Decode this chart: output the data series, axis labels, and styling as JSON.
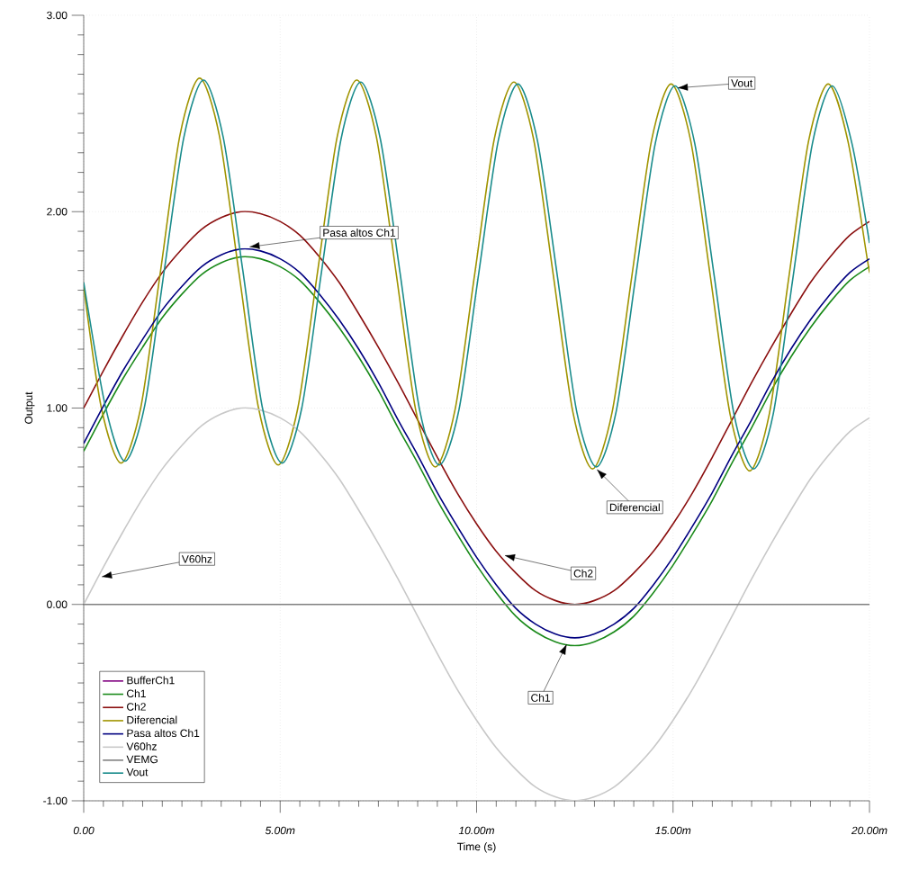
{
  "chart_data": {
    "type": "line",
    "xlabel": "Time (s)",
    "ylabel": "Output",
    "xlim": [
      0,
      20
    ],
    "ylim": [
      -1,
      3
    ],
    "xticks": [
      {
        "value": 0,
        "label": "0.00"
      },
      {
        "value": 5,
        "label": "5.00m"
      },
      {
        "value": 10,
        "label": "10.00m"
      },
      {
        "value": 15,
        "label": "15.00m"
      },
      {
        "value": 20,
        "label": "20.00m"
      }
    ],
    "yticks": [
      {
        "value": -1,
        "label": "-1.00"
      },
      {
        "value": 0,
        "label": "0.00"
      },
      {
        "value": 1,
        "label": "1.00"
      },
      {
        "value": 2,
        "label": "2.00"
      },
      {
        "value": 3,
        "label": "3.00"
      }
    ],
    "grid": true,
    "legend": "bottom left",
    "x": [
      0,
      0.5,
      1,
      1.5,
      2,
      2.5,
      3,
      3.5,
      4,
      4.5,
      5,
      5.5,
      6,
      6.5,
      7,
      7.5,
      8,
      8.5,
      9,
      9.5,
      10,
      10.5,
      11,
      11.5,
      12,
      12.5,
      13,
      13.5,
      14,
      14.5,
      15,
      15.5,
      16,
      16.5,
      17,
      17.5,
      18,
      18.5,
      19,
      19.5,
      20
    ],
    "series": [
      {
        "name": "BufferCh1",
        "color": "#800080",
        "values": [
          null,
          null,
          null,
          null,
          null,
          null,
          null,
          null,
          null,
          null,
          null,
          null,
          null,
          null,
          null,
          null,
          null,
          null,
          null,
          null,
          null,
          null,
          null,
          null,
          null,
          null,
          null,
          null,
          null,
          null,
          null,
          null,
          null,
          null,
          null,
          null,
          null,
          null,
          null,
          null,
          null
        ]
      },
      {
        "name": "Ch1",
        "color": "#1a8a1a",
        "values": [
          0.78,
          0.97,
          1.15,
          1.31,
          1.46,
          1.58,
          1.68,
          1.74,
          1.77,
          1.76,
          1.72,
          1.65,
          1.54,
          1.41,
          1.26,
          1.09,
          0.9,
          0.72,
          0.53,
          0.36,
          0.2,
          0.06,
          -0.06,
          -0.14,
          -0.19,
          -0.21,
          -0.19,
          -0.14,
          -0.06,
          0.06,
          0.2,
          0.36,
          0.53,
          0.72,
          0.9,
          1.09,
          1.26,
          1.41,
          1.54,
          1.65,
          1.72
        ]
      },
      {
        "name": "Ch2",
        "color": "#8b1010",
        "values": [
          1.0,
          1.19,
          1.37,
          1.54,
          1.69,
          1.81,
          1.91,
          1.97,
          2.0,
          1.99,
          1.95,
          1.88,
          1.77,
          1.64,
          1.48,
          1.31,
          1.13,
          0.94,
          0.75,
          0.57,
          0.41,
          0.27,
          0.16,
          0.07,
          0.02,
          0.0,
          0.02,
          0.07,
          0.16,
          0.27,
          0.41,
          0.57,
          0.75,
          0.94,
          1.13,
          1.31,
          1.48,
          1.64,
          1.77,
          1.88,
          1.95
        ]
      },
      {
        "name": "Diferencial",
        "color": "#a09400",
        "x": [
          0,
          0.45,
          0.95,
          1.45,
          1.95,
          2.45,
          2.95,
          3.45,
          3.95,
          4.45,
          4.95,
          5.45,
          5.95,
          6.45,
          6.95,
          7.45,
          7.95,
          8.45,
          8.95,
          9.45,
          9.95,
          10.45,
          10.95,
          11.45,
          11.95,
          12.45,
          12.95,
          13.45,
          13.95,
          14.45,
          14.95,
          15.45,
          15.95,
          16.45,
          16.95,
          17.45,
          17.95,
          18.45,
          18.95,
          19.45,
          19.95,
          20
        ],
        "values": [
          1.62,
          1.0,
          0.72,
          1.0,
          1.69,
          2.39,
          2.68,
          2.39,
          1.69,
          1.0,
          0.71,
          1.0,
          1.69,
          2.38,
          2.67,
          2.38,
          1.69,
          0.99,
          0.7,
          0.99,
          1.68,
          2.37,
          2.66,
          2.37,
          1.68,
          0.98,
          0.69,
          0.98,
          1.67,
          2.36,
          2.65,
          2.36,
          1.67,
          0.97,
          0.68,
          0.97,
          1.67,
          2.36,
          2.65,
          2.36,
          1.75,
          1.7
        ]
      },
      {
        "name": "Pasa altos Ch1",
        "color": "#000080",
        "values": [
          0.82,
          1.01,
          1.19,
          1.35,
          1.5,
          1.62,
          1.72,
          1.78,
          1.81,
          1.8,
          1.76,
          1.69,
          1.58,
          1.45,
          1.3,
          1.13,
          0.94,
          0.76,
          0.57,
          0.4,
          0.24,
          0.1,
          -0.02,
          -0.1,
          -0.15,
          -0.17,
          -0.15,
          -0.1,
          -0.02,
          0.1,
          0.24,
          0.4,
          0.57,
          0.76,
          0.94,
          1.13,
          1.3,
          1.45,
          1.58,
          1.69,
          1.76
        ]
      },
      {
        "name": "V60hz",
        "color": "#c8c8c8",
        "values": [
          0,
          0.19,
          0.37,
          0.54,
          0.69,
          0.81,
          0.91,
          0.97,
          1.0,
          0.99,
          0.95,
          0.88,
          0.77,
          0.64,
          0.48,
          0.31,
          0.13,
          -0.06,
          -0.25,
          -0.43,
          -0.59,
          -0.73,
          -0.84,
          -0.93,
          -0.98,
          -1.0,
          -0.98,
          -0.93,
          -0.84,
          -0.73,
          -0.59,
          -0.43,
          -0.25,
          -0.06,
          0.13,
          0.31,
          0.48,
          0.64,
          0.77,
          0.88,
          0.95
        ]
      },
      {
        "name": "VEMG",
        "color": "#808080",
        "x": [
          0,
          20
        ],
        "values": [
          0,
          0
        ]
      },
      {
        "name": "Vout",
        "color": "#1a8c8c",
        "x": [
          0,
          0.55,
          1.05,
          1.55,
          2.05,
          2.55,
          3.05,
          3.55,
          4.05,
          4.55,
          5.05,
          5.55,
          6.05,
          6.55,
          7.05,
          7.55,
          8.05,
          8.55,
          9.05,
          9.55,
          10.05,
          10.55,
          11.05,
          11.55,
          12.05,
          12.55,
          13.05,
          13.55,
          14.05,
          14.55,
          15.05,
          15.55,
          16.05,
          16.55,
          17.05,
          17.55,
          18.05,
          18.55,
          19.05,
          19.55,
          20
        ],
        "values": [
          1.64,
          1.01,
          0.73,
          1.01,
          1.7,
          2.38,
          2.67,
          2.38,
          1.7,
          1.0,
          0.72,
          1.0,
          1.69,
          2.37,
          2.66,
          2.37,
          1.69,
          0.99,
          0.71,
          0.99,
          1.68,
          2.36,
          2.65,
          2.36,
          1.68,
          0.98,
          0.7,
          0.98,
          1.67,
          2.35,
          2.64,
          2.35,
          1.67,
          0.97,
          0.69,
          0.97,
          1.66,
          2.35,
          2.64,
          2.35,
          1.84
        ]
      }
    ],
    "annotations": [
      "Vout",
      "Pasa altos Ch1",
      "Diferencial",
      "Ch2",
      "Ch1",
      "V60hz"
    ]
  }
}
